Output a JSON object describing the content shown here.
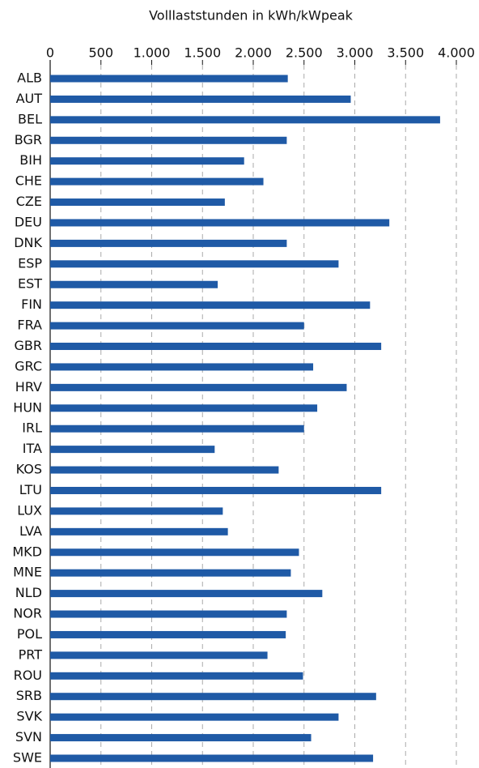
{
  "chart_data": {
    "type": "bar",
    "orientation": "horizontal",
    "title": "Volllaststunden in kWh/kWpeak",
    "categories": [
      "ALB",
      "AUT",
      "BEL",
      "BGR",
      "BIH",
      "CHE",
      "CZE",
      "DEU",
      "DNK",
      "ESP",
      "EST",
      "FIN",
      "FRA",
      "GBR",
      "GRC",
      "HRV",
      "HUN",
      "IRL",
      "ITA",
      "KOS",
      "LTU",
      "LUX",
      "LVA",
      "MKD",
      "MNE",
      "NLD",
      "NOR",
      "POL",
      "PRT",
      "ROU",
      "SRB",
      "SVK",
      "SVN",
      "SWE"
    ],
    "values": [
      2340,
      2960,
      3840,
      2330,
      1910,
      2100,
      1720,
      3340,
      2330,
      2840,
      1650,
      3150,
      2500,
      3260,
      2590,
      2920,
      2630,
      2500,
      1620,
      2250,
      3260,
      1700,
      1750,
      2450,
      2370,
      2680,
      2330,
      2320,
      2140,
      2490,
      3210,
      2840,
      2570,
      3180
    ],
    "color": "#1f5aa6",
    "xlim": [
      0,
      4000
    ],
    "xticks": [
      0,
      500,
      {
        "value": 1000,
        "label": "1.000"
      },
      {
        "value": 1500,
        "label": "1.500"
      },
      {
        "value": 2000,
        "label": "2.000"
      },
      {
        "value": 2500,
        "label": "2.500"
      },
      {
        "value": 3000,
        "label": "3.000"
      },
      {
        "value": 3500,
        "label": "3.500"
      },
      {
        "value": 4000,
        "label": "4.000"
      }
    ],
    "grid": true
  }
}
